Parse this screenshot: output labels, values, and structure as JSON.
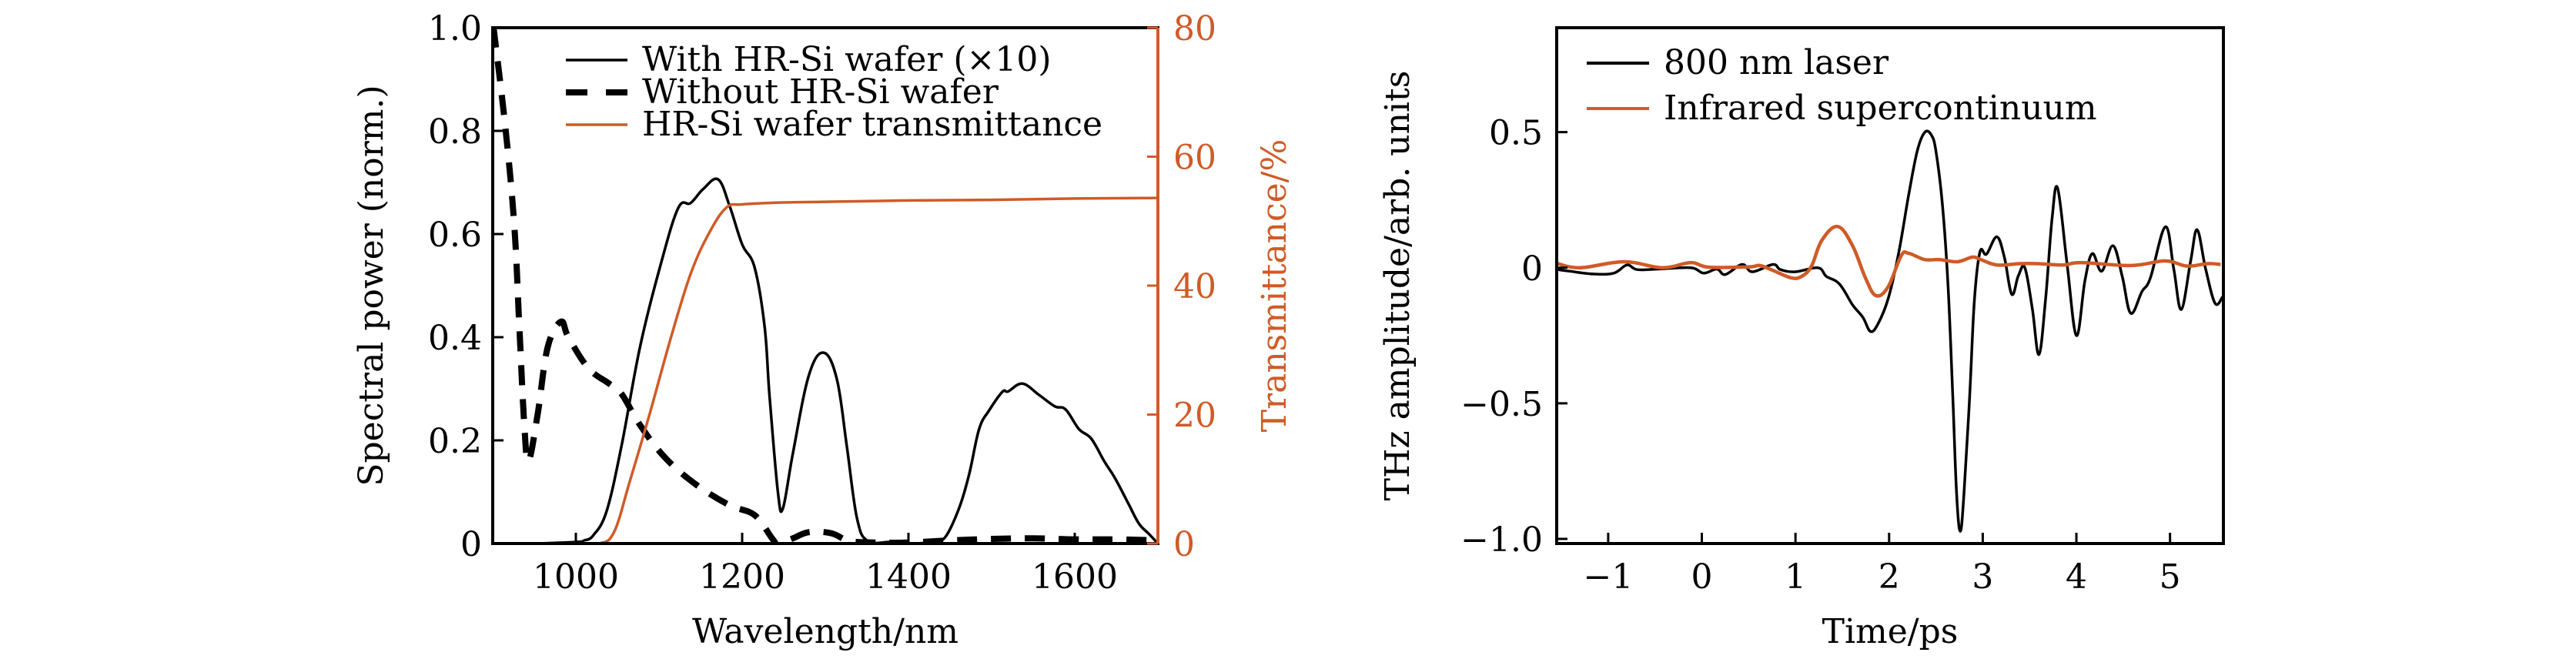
{
  "chart_data": [
    {
      "id": "spectra",
      "type": "line",
      "xlabel": "Wavelength/nm",
      "ylabel": "Spectral power (norm.)",
      "y2label": "Transmittance/%",
      "xlim": [
        900,
        1700
      ],
      "ylim": [
        0,
        1.0
      ],
      "y2lim": [
        0,
        80
      ],
      "xticks": [
        1000,
        1200,
        1400,
        1600
      ],
      "xtick_labels": [
        "1000",
        "1200",
        "1400",
        "1600"
      ],
      "yticks": [
        0,
        0.2,
        0.4,
        0.6,
        0.8,
        1.0
      ],
      "ytick_labels": [
        "0",
        "0.2",
        "0.4",
        "0.6",
        "0.8",
        "1.0"
      ],
      "y2ticks": [
        0,
        20,
        40,
        60,
        80
      ],
      "y2tick_labels": [
        "0",
        "20",
        "40",
        "60",
        "80"
      ],
      "grid": false,
      "legend_position": "top-right",
      "series": [
        {
          "name": "With HR-Si wafer (×10)",
          "legend_label": "With HR-Si wafer (×10)",
          "axis": "left",
          "color": "#000000",
          "style": "solid",
          "x": [
            900,
            950,
            1000,
            1010,
            1021,
            1037,
            1055,
            1077,
            1101,
            1123,
            1138,
            1153,
            1171,
            1185,
            1200,
            1215,
            1227,
            1233,
            1243,
            1249,
            1261,
            1280,
            1298,
            1314,
            1326,
            1338,
            1351,
            1380,
            1410,
            1432,
            1445,
            1461,
            1473,
            1485,
            1497,
            1513,
            1520,
            1537,
            1557,
            1576,
            1589,
            1605,
            1620,
            1636,
            1648,
            1664,
            1677,
            1689,
            1700
          ],
          "y": [
            0,
            0,
            0.003,
            0.006,
            0.016,
            0.063,
            0.19,
            0.38,
            0.535,
            0.65,
            0.66,
            0.687,
            0.706,
            0.654,
            0.58,
            0.535,
            0.42,
            0.285,
            0.1,
            0.068,
            0.175,
            0.325,
            0.37,
            0.318,
            0.187,
            0.05,
            0.005,
            0.003,
            0.0,
            0.005,
            0.014,
            0.069,
            0.134,
            0.222,
            0.258,
            0.294,
            0.295,
            0.31,
            0.288,
            0.266,
            0.26,
            0.222,
            0.203,
            0.158,
            0.128,
            0.079,
            0.039,
            0.019,
            0.0
          ]
        },
        {
          "name": "Without HR-Si wafer",
          "legend_label": "Without HR-Si wafer",
          "axis": "left",
          "color": "#000000",
          "style": "dashed",
          "x": [
            901,
            915,
            926,
            932,
            938,
            943,
            954,
            966,
            982,
            991,
            1015,
            1040,
            1055,
            1077,
            1107,
            1144,
            1184,
            1215,
            1236,
            1243,
            1261,
            1280,
            1307,
            1329,
            1360,
            1400,
            1450,
            1500,
            1550,
            1600,
            1650,
            1700
          ],
          "y": [
            1.0,
            0.81,
            0.615,
            0.42,
            0.23,
            0.16,
            0.25,
            0.38,
            0.43,
            0.4,
            0.34,
            0.31,
            0.29,
            0.23,
            0.167,
            0.115,
            0.075,
            0.055,
            0.01,
            0.0,
            0.01,
            0.022,
            0.02,
            0.005,
            0.002,
            0.002,
            0.006,
            0.009,
            0.01,
            0.008,
            0.008,
            0.006
          ]
        },
        {
          "name": "HR-Si wafer transmittance",
          "legend_label": "HR-Si wafer transmittance",
          "axis": "right",
          "color": "#CF5B27",
          "style": "solid",
          "x": [
            900,
            1000,
            1028,
            1046,
            1065,
            1089,
            1114,
            1138,
            1160,
            1181,
            1200,
            1250,
            1300,
            1400,
            1500,
            1600,
            1700
          ],
          "y": [
            0,
            0,
            0,
            1.8,
            9.7,
            20.2,
            31.8,
            41.8,
            48.1,
            52.1,
            52.6,
            52.9,
            53.0,
            53.2,
            53.3,
            53.5,
            53.6
          ]
        }
      ]
    },
    {
      "id": "thz_waveforms",
      "type": "line",
      "xlabel": "Time/ps",
      "ylabel": "THz amplitude/arb. units",
      "xlim": [
        -1.55,
        5.57
      ],
      "ylim": [
        -1.017,
        0.885
      ],
      "xticks": [
        -1,
        0,
        1,
        2,
        3,
        4,
        5
      ],
      "xtick_labels": [
        "−1",
        "0",
        "1",
        "2",
        "3",
        "4",
        "5"
      ],
      "yticks": [
        -1.0,
        -0.5,
        0,
        0.5
      ],
      "ytick_labels": [
        "−1.0",
        "−0.5",
        "0",
        "0.5"
      ],
      "grid": false,
      "legend_position": "top-left",
      "series": [
        {
          "name": "800 nm laser",
          "legend_label": "800 nm laser",
          "color": "#000000",
          "style": "solid",
          "x": [
            -1.55,
            -1.41,
            -1.16,
            -0.94,
            -0.8,
            -0.69,
            -0.47,
            -0.12,
            0.02,
            0.16,
            0.25,
            0.43,
            0.54,
            0.76,
            0.84,
            1.0,
            1.24,
            1.33,
            1.47,
            1.61,
            1.72,
            1.8,
            1.88,
            1.99,
            2.1,
            2.21,
            2.3,
            2.38,
            2.45,
            2.5,
            2.57,
            2.63,
            2.68,
            2.72,
            2.76,
            2.8,
            2.86,
            2.91,
            2.97,
            3.04,
            3.15,
            3.23,
            3.31,
            3.38,
            3.45,
            3.53,
            3.6,
            3.67,
            3.74,
            3.8,
            3.9,
            4.0,
            4.09,
            4.17,
            4.27,
            4.39,
            4.49,
            4.58,
            4.7,
            4.79,
            4.95,
            5.04,
            5.12,
            5.22,
            5.29,
            5.38,
            5.48,
            5.56
          ],
          "y": [
            -0.006,
            -0.013,
            -0.023,
            -0.02,
            0.01,
            -0.007,
            -0.005,
            0.0,
            -0.02,
            -0.005,
            -0.025,
            0.012,
            -0.015,
            0.012,
            -0.007,
            -0.015,
            0.0,
            -0.032,
            -0.06,
            -0.137,
            -0.183,
            -0.235,
            -0.208,
            -0.114,
            0.05,
            0.27,
            0.43,
            0.499,
            0.49,
            0.43,
            0.23,
            -0.07,
            -0.475,
            -0.83,
            -0.972,
            -0.83,
            -0.475,
            -0.123,
            0.058,
            0.05,
            0.114,
            0.04,
            -0.098,
            -0.03,
            0.0,
            -0.153,
            -0.32,
            -0.12,
            0.18,
            0.293,
            0.015,
            -0.25,
            -0.05,
            0.052,
            -0.013,
            0.081,
            -0.032,
            -0.168,
            -0.088,
            -0.038,
            0.151,
            -0.004,
            -0.154,
            0.024,
            0.14,
            -0.004,
            -0.131,
            -0.108
          ]
        },
        {
          "name": "Infrared supercontinuum",
          "legend_label": "Infrared supercontinuum",
          "color": "#CF5B27",
          "style": "solid",
          "x": [
            -1.55,
            -1.3,
            -0.83,
            -0.42,
            -0.12,
            0.07,
            0.5,
            0.62,
            0.76,
            0.95,
            1.06,
            1.17,
            1.28,
            1.45,
            1.61,
            1.75,
            1.86,
            1.99,
            2.13,
            2.21,
            2.38,
            2.54,
            2.73,
            2.89,
            2.98,
            3.15,
            3.39,
            3.59,
            3.86,
            4.05,
            4.58,
            4.95,
            5.18,
            5.4,
            5.54
          ],
          "y": [
            0.016,
            0.0,
            0.022,
            0.0,
            0.019,
            0.002,
            0.003,
            0.008,
            -0.01,
            -0.037,
            -0.033,
            0.005,
            0.1,
            0.152,
            0.081,
            -0.04,
            -0.103,
            -0.07,
            0.045,
            0.053,
            0.03,
            0.03,
            0.022,
            0.039,
            0.03,
            0.01,
            0.015,
            0.015,
            0.01,
            0.019,
            0.008,
            0.025,
            0.006,
            0.015,
            0.012
          ]
        }
      ]
    }
  ]
}
